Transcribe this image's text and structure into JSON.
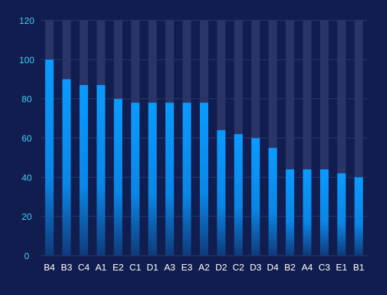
{
  "chart_data": {
    "type": "bar",
    "title": "",
    "xlabel": "",
    "ylabel": "",
    "categories": [
      "B4",
      "B3",
      "C4",
      "A1",
      "E2",
      "C1",
      "D1",
      "A3",
      "E3",
      "A2",
      "D2",
      "C2",
      "D3",
      "D4",
      "B2",
      "A4",
      "C3",
      "E1",
      "B1"
    ],
    "values": [
      100,
      90,
      87,
      87,
      80,
      78,
      78,
      78,
      78,
      78,
      64,
      62,
      60,
      55,
      44,
      44,
      44,
      42,
      40
    ],
    "ylim": [
      0,
      120
    ],
    "yticks": [
      0,
      20,
      40,
      60,
      80,
      100,
      120
    ],
    "background_bar_max": 120,
    "grid": true,
    "legend": "none",
    "colors": {
      "background": "#111d4e",
      "track": "#2a3466",
      "bar_top": "#0a9bff",
      "bar_bottom": "#0f3a7a",
      "grid": "#2a3a6e",
      "ytick_text": "#3fd0f5",
      "xtick_text": "#ffffff"
    }
  }
}
